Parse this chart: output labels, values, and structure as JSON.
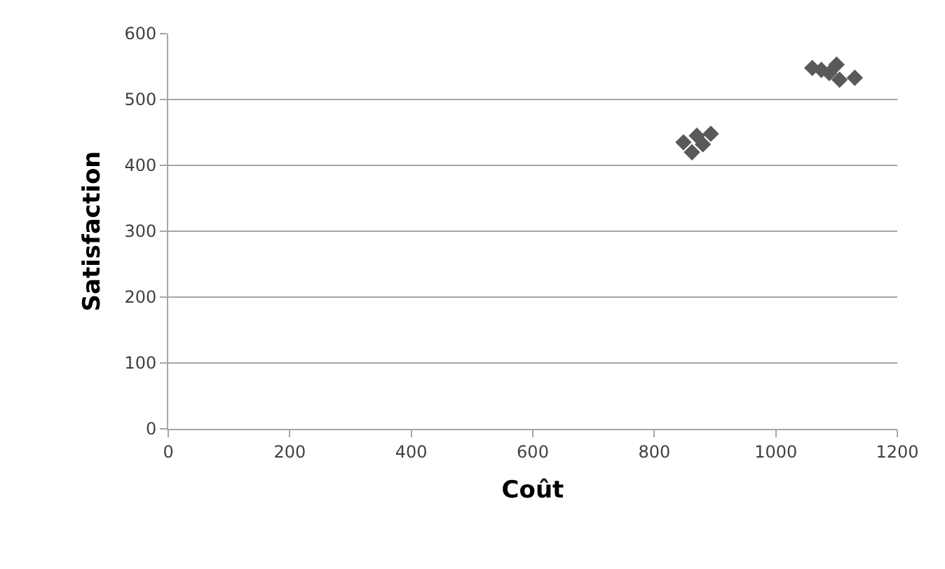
{
  "chart_data": {
    "type": "scatter",
    "xlabel": "Coût",
    "ylabel": "Satisfaction",
    "series": [
      {
        "color": "#595959",
        "x": [
          848,
          862,
          870,
          880,
          893,
          1060,
          1075,
          1088,
          1100,
          1105,
          1130
        ],
        "values": [
          435,
          420,
          445,
          432,
          448,
          548,
          545,
          540,
          553,
          530,
          533
        ]
      }
    ],
    "xlim": [
      0,
      1200
    ],
    "xticks": [
      0,
      200,
      400,
      600,
      800,
      1000,
      1200
    ],
    "ylim": [
      0,
      600
    ],
    "yticks": [
      0,
      100,
      200,
      300,
      400,
      500,
      600
    ],
    "grid": "y",
    "marker": "diamond"
  }
}
